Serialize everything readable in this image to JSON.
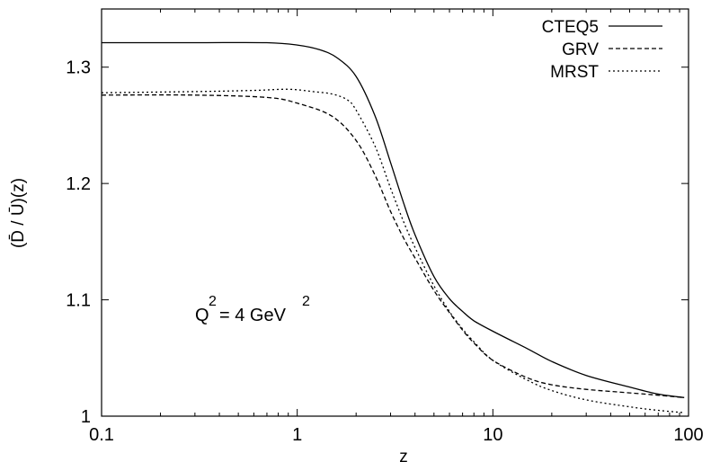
{
  "chart_data": {
    "type": "line",
    "title": "",
    "xlabel": "z",
    "ylabel": "(D̄ / Ū)(z)",
    "xscale": "log",
    "xlim": [
      0.1,
      100
    ],
    "ylim": [
      1.0,
      1.35
    ],
    "xticks": [
      0.1,
      1,
      10,
      100
    ],
    "xtick_labels": [
      "0.1",
      "1",
      "10",
      "100"
    ],
    "yticks": [
      1.0,
      1.1,
      1.2,
      1.3
    ],
    "ytick_labels": [
      "1",
      "1.1",
      "1.2",
      "1.3"
    ],
    "grid": false,
    "legend_position": "top-right",
    "annotation": {
      "base": "Q",
      "exp": "2",
      "mid": "= 4 GeV",
      "exp2": "2"
    },
    "series": [
      {
        "name": "CTEQ5",
        "style": "solid",
        "x": [
          0.1,
          0.3,
          0.7,
          1.0,
          1.3,
          1.6,
          2.0,
          2.5,
          3.0,
          3.5,
          4.0,
          5.0,
          6.0,
          7.0,
          8.0,
          10,
          15,
          20,
          30,
          50,
          70,
          95
        ],
        "y": [
          1.321,
          1.321,
          1.321,
          1.319,
          1.315,
          1.308,
          1.292,
          1.258,
          1.218,
          1.183,
          1.156,
          1.12,
          1.101,
          1.09,
          1.082,
          1.073,
          1.058,
          1.047,
          1.035,
          1.025,
          1.019,
          1.016
        ]
      },
      {
        "name": "GRV",
        "style": "dashed",
        "x": [
          0.1,
          0.3,
          0.7,
          1.0,
          1.5,
          2.0,
          2.5,
          3.0,
          3.5,
          4.0,
          5.0,
          6.0,
          7.0,
          8.0,
          10,
          15,
          20,
          30,
          50,
          70,
          95
        ],
        "y": [
          1.276,
          1.276,
          1.274,
          1.269,
          1.258,
          1.237,
          1.207,
          1.176,
          1.153,
          1.136,
          1.108,
          1.089,
          1.074,
          1.063,
          1.048,
          1.033,
          1.027,
          1.023,
          1.02,
          1.018,
          1.016
        ]
      },
      {
        "name": "MRST",
        "style": "dotted",
        "x": [
          0.1,
          0.3,
          0.6,
          0.9,
          1.2,
          1.5,
          1.8,
          2.0,
          2.5,
          3.0,
          3.5,
          4.0,
          5.0,
          6.0,
          7.0,
          8.0,
          10,
          15,
          20,
          30,
          50,
          70,
          95
        ],
        "y": [
          1.278,
          1.279,
          1.28,
          1.281,
          1.279,
          1.277,
          1.272,
          1.263,
          1.232,
          1.196,
          1.167,
          1.145,
          1.112,
          1.09,
          1.075,
          1.064,
          1.048,
          1.031,
          1.022,
          1.014,
          1.008,
          1.005,
          1.003
        ]
      }
    ]
  }
}
